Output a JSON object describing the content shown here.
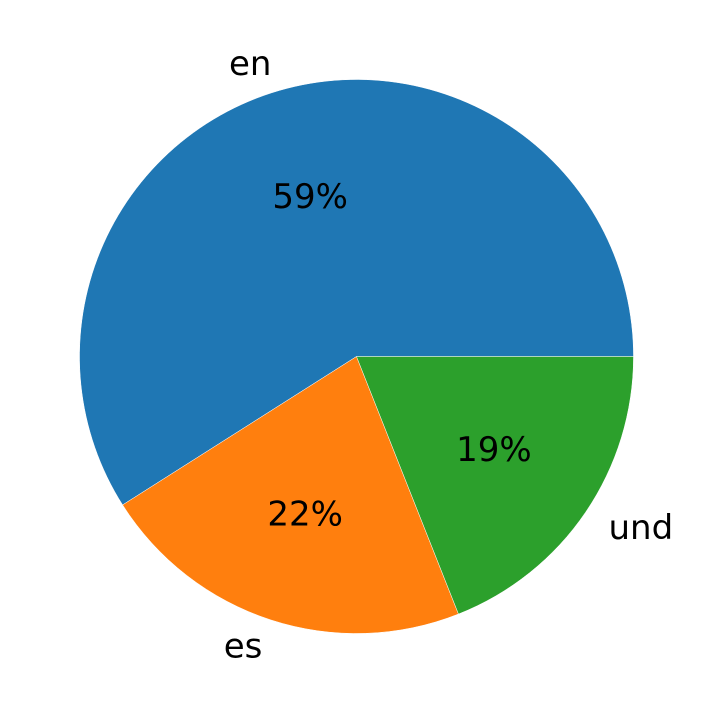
{
  "chart_data": {
    "type": "pie",
    "title": "",
    "slices": [
      {
        "label": "en",
        "value": 59,
        "pct_label": "59%",
        "color": "#1f77b4"
      },
      {
        "label": "es",
        "value": 22,
        "pct_label": "22%",
        "color": "#ff7f0e"
      },
      {
        "label": "und",
        "value": 19,
        "pct_label": "19%",
        "color": "#2ca02c"
      }
    ],
    "start_angle_deg": 0,
    "direction": "counterclockwise",
    "legend": "none"
  }
}
